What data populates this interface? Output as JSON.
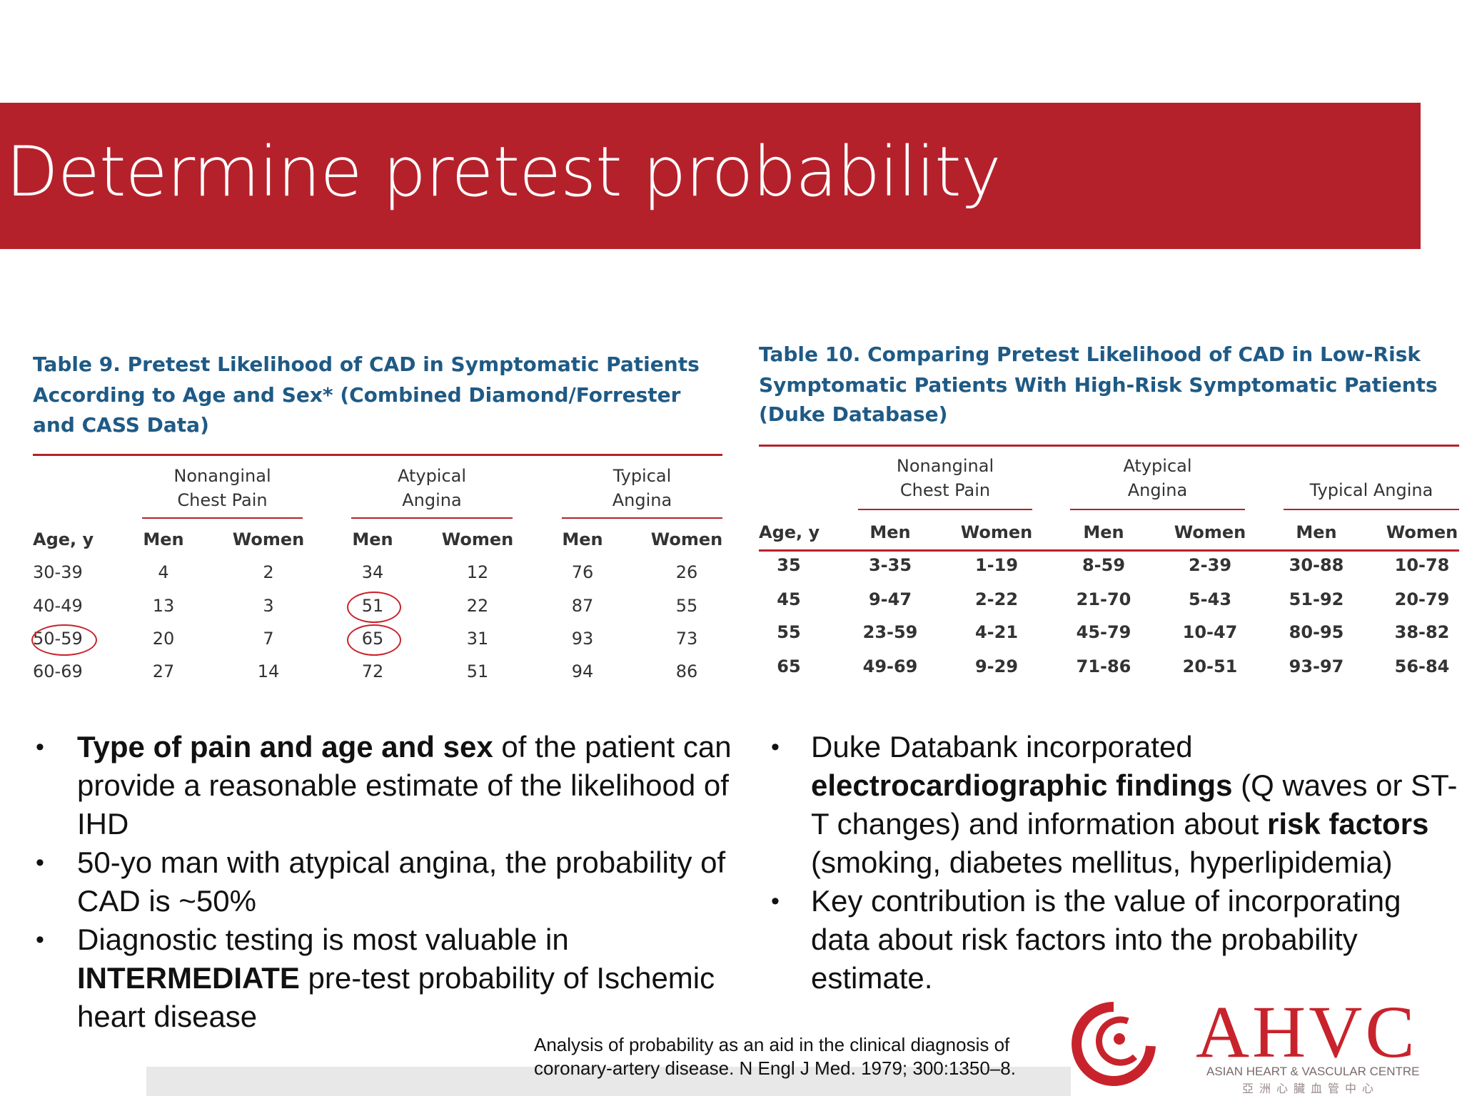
{
  "title": "Determine pretest probability",
  "table9": {
    "caption": [
      "Table 9.  Pretest Likelihood of CAD in Symptomatic Patients",
      "According to Age and Sex* (Combined Diamond/Forrester",
      "and CASS Data)"
    ],
    "groups": [
      "Nonanginal Chest Pain",
      "Atypical Angina",
      "Typical Angina"
    ],
    "headers": [
      "Age, y",
      "Men",
      "Women",
      "Men",
      "Women",
      "Men",
      "Women"
    ],
    "rows": [
      [
        "30-39",
        4,
        2,
        34,
        12,
        76,
        26
      ],
      [
        "40-49",
        13,
        3,
        51,
        22,
        87,
        55
      ],
      [
        "50-59",
        20,
        7,
        65,
        31,
        93,
        73
      ],
      [
        "60-69",
        27,
        14,
        72,
        51,
        94,
        86
      ]
    ]
  },
  "table10": {
    "caption": [
      "Table 10.  Comparing Pretest Likelihood of CAD in Low-Risk",
      "Symptomatic Patients With High-Risk Symptomatic Patients",
      "(Duke Database)"
    ],
    "groups": [
      "Nonanginal Chest Pain",
      "Atypical Angina",
      "Typical Angina"
    ],
    "headers": [
      "Age, y",
      "Men",
      "Women",
      "Men",
      "Women",
      "Men",
      "Women"
    ],
    "rows": [
      [
        35,
        "3-35",
        "1-19",
        "8-59",
        "2-39",
        "30-88",
        "10-78"
      ],
      [
        45,
        "9-47",
        "2-22",
        "21-70",
        "5-43",
        "51-92",
        "20-79"
      ],
      [
        55,
        "23-59",
        "4-21",
        "45-79",
        "10-47",
        "80-95",
        "38-82"
      ],
      [
        65,
        "49-69",
        "9-29",
        "71-86",
        "20-51",
        "93-97",
        "56-84"
      ]
    ]
  },
  "bullets_left": [
    [
      {
        "text": "Type of pain and age and sex",
        "bold": true
      },
      {
        "text": " of the patient can provide a reasonable estimate of the likelihood of IHD",
        "bold": false
      }
    ],
    [
      {
        "text": "50-yo man with atypical angina, the probability of CAD is ~50%",
        "bold": false
      }
    ],
    [
      {
        "text": "Diagnostic testing is most valuable in ",
        "bold": false
      },
      {
        "text": "INTERMEDIATE",
        "bold": true
      },
      {
        "text": " pre-test probability of Ischemic heart disease",
        "bold": false
      }
    ]
  ],
  "bullets_right": [
    [
      {
        "text": "Duke Databank incorporated ",
        "bold": false
      },
      {
        "text": "electrocardiographic findings",
        "bold": true
      },
      {
        "text": " (Q waves or ST-T changes) and information about ",
        "bold": false
      },
      {
        "text": "risk factors",
        "bold": true
      },
      {
        "text": " (smoking, diabetes mellitus, hyperlipidemia)",
        "bold": false
      }
    ],
    [
      {
        "text": "Key contribution is the value of incorporating data about risk factors into the probability estimate.",
        "bold": false
      }
    ]
  ],
  "citation": [
    "Analysis of probability as an aid in the clinical diagnosis of",
    "coronary-artery disease. N Engl J Med. 1979; 300:1350–8."
  ],
  "logo": {
    "name": "AHVC",
    "subtitle": "ASIAN HEART & VASCULAR CENTRE",
    "chinese": "亞洲心臟血管中心"
  }
}
